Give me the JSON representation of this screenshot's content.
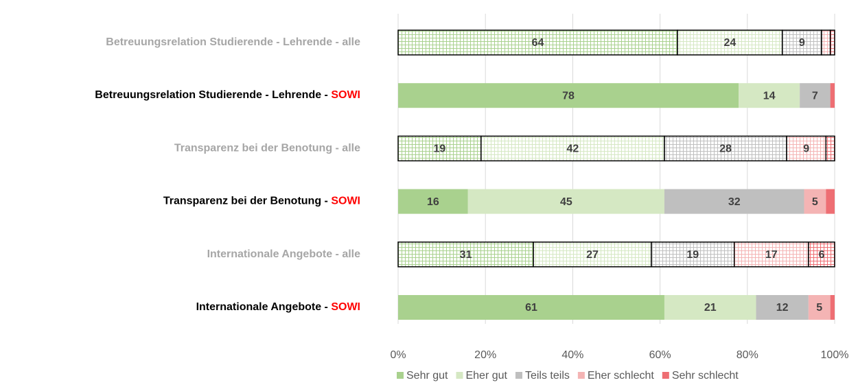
{
  "chart_data": {
    "type": "stacked_bar_100",
    "categories": [
      "Betreuungsrelation Studierende - Lehrende - alle",
      "Betreuungsrelation Studierende - Lehrende - SOWI",
      "Transparenz bei der Benotung - alle",
      "Transparenz bei der Benotung - SOWI",
      "Internationale Angebote - alle",
      "Internationale Angebote - SOWI"
    ],
    "category_colors": [
      "#a6a6a6",
      "#000000",
      "#a6a6a6",
      "#000000",
      "#a6a6a6",
      "#000000"
    ],
    "highlight": "SOWI",
    "highlight_color": "#ff0000",
    "hatched": [
      true,
      false,
      true,
      false,
      true,
      false
    ],
    "series": [
      {
        "name": "Sehr gut",
        "color": "#a9d18e",
        "values": [
          64,
          78,
          19,
          16,
          31,
          61
        ],
        "value_labels": [
          "64",
          "78",
          "19",
          "16",
          "31",
          "61"
        ]
      },
      {
        "name": "Eher gut",
        "color": "#d5e8c3",
        "values": [
          24,
          14,
          42,
          45,
          27,
          21
        ],
        "value_labels": [
          "24",
          "14",
          "42",
          "45",
          "27",
          "21"
        ]
      },
      {
        "name": "Teils teils",
        "color": "#bfbfbf",
        "values": [
          9,
          7,
          28,
          32,
          19,
          12
        ],
        "value_labels": [
          "9",
          "7",
          "28",
          "32",
          "19",
          "12"
        ]
      },
      {
        "name": "Eher schlecht",
        "color": "#f4b4b4",
        "values": [
          2,
          0,
          9,
          5,
          17,
          5
        ],
        "value_labels": [
          null,
          null,
          "9",
          "5",
          "17",
          "5"
        ]
      },
      {
        "name": "Sehr schlecht",
        "color": "#ee6e73",
        "values": [
          1,
          1,
          2,
          2,
          6,
          1
        ],
        "value_labels": [
          null,
          null,
          null,
          null,
          "6",
          null
        ]
      }
    ],
    "xlim": [
      0,
      100
    ],
    "xticks": [
      {
        "value": 0,
        "label": "0%"
      },
      {
        "value": 20,
        "label": "20%"
      },
      {
        "value": 40,
        "label": "40%"
      },
      {
        "value": 60,
        "label": "60%"
      },
      {
        "value": 80,
        "label": "80%"
      },
      {
        "value": 100,
        "label": "100%"
      }
    ],
    "grid": true,
    "legend": "bottom"
  }
}
